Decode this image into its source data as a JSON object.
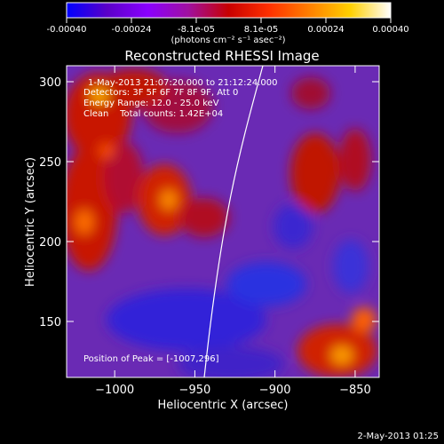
{
  "colorbar": {
    "tick_labels": [
      "-0.00040",
      "-0.00024",
      "-8.1e-05",
      "8.1e-05",
      "0.00024",
      "0.00040"
    ],
    "unit_label": "(photons cm⁻² s⁻¹ asec⁻²)",
    "colors": [
      "#0000ff",
      "#5a00c8",
      "#8a00ff",
      "#a010a0",
      "#c80000",
      "#ff3000",
      "#ff8000",
      "#ffd000",
      "#ffffff"
    ]
  },
  "plot": {
    "title": "Reconstructed RHESSI Image",
    "xlabel": "Heliocentric X (arcsec)",
    "ylabel": "Heliocentric Y (arcsec)",
    "xlim": [
      -1030,
      -835
    ],
    "ylim": [
      115,
      310
    ],
    "x_ticks": [
      "−1000",
      "−950",
      "−900",
      "−850"
    ],
    "x_tick_values": [
      -1000,
      -950,
      -900,
      -850
    ],
    "y_ticks": [
      "150",
      "200",
      "250",
      "300"
    ],
    "y_tick_values": [
      150,
      200,
      250,
      300
    ],
    "background_color": "#6a2ab4"
  },
  "annotations": {
    "time_range": "1-May-2013 21:07:20.000 to 21:12:24.000",
    "detectors": "Detectors: 3F 5F 6F 7F 8F 9F, Att 0",
    "energy": "Energy Range: 12.0 - 25.0 keV",
    "clean": "Clean    Total counts: 1.42E+04",
    "peak": "Position of Peak = [-1007,296]"
  },
  "footer": {
    "timestamp": "2-May-2013 01:25"
  }
}
